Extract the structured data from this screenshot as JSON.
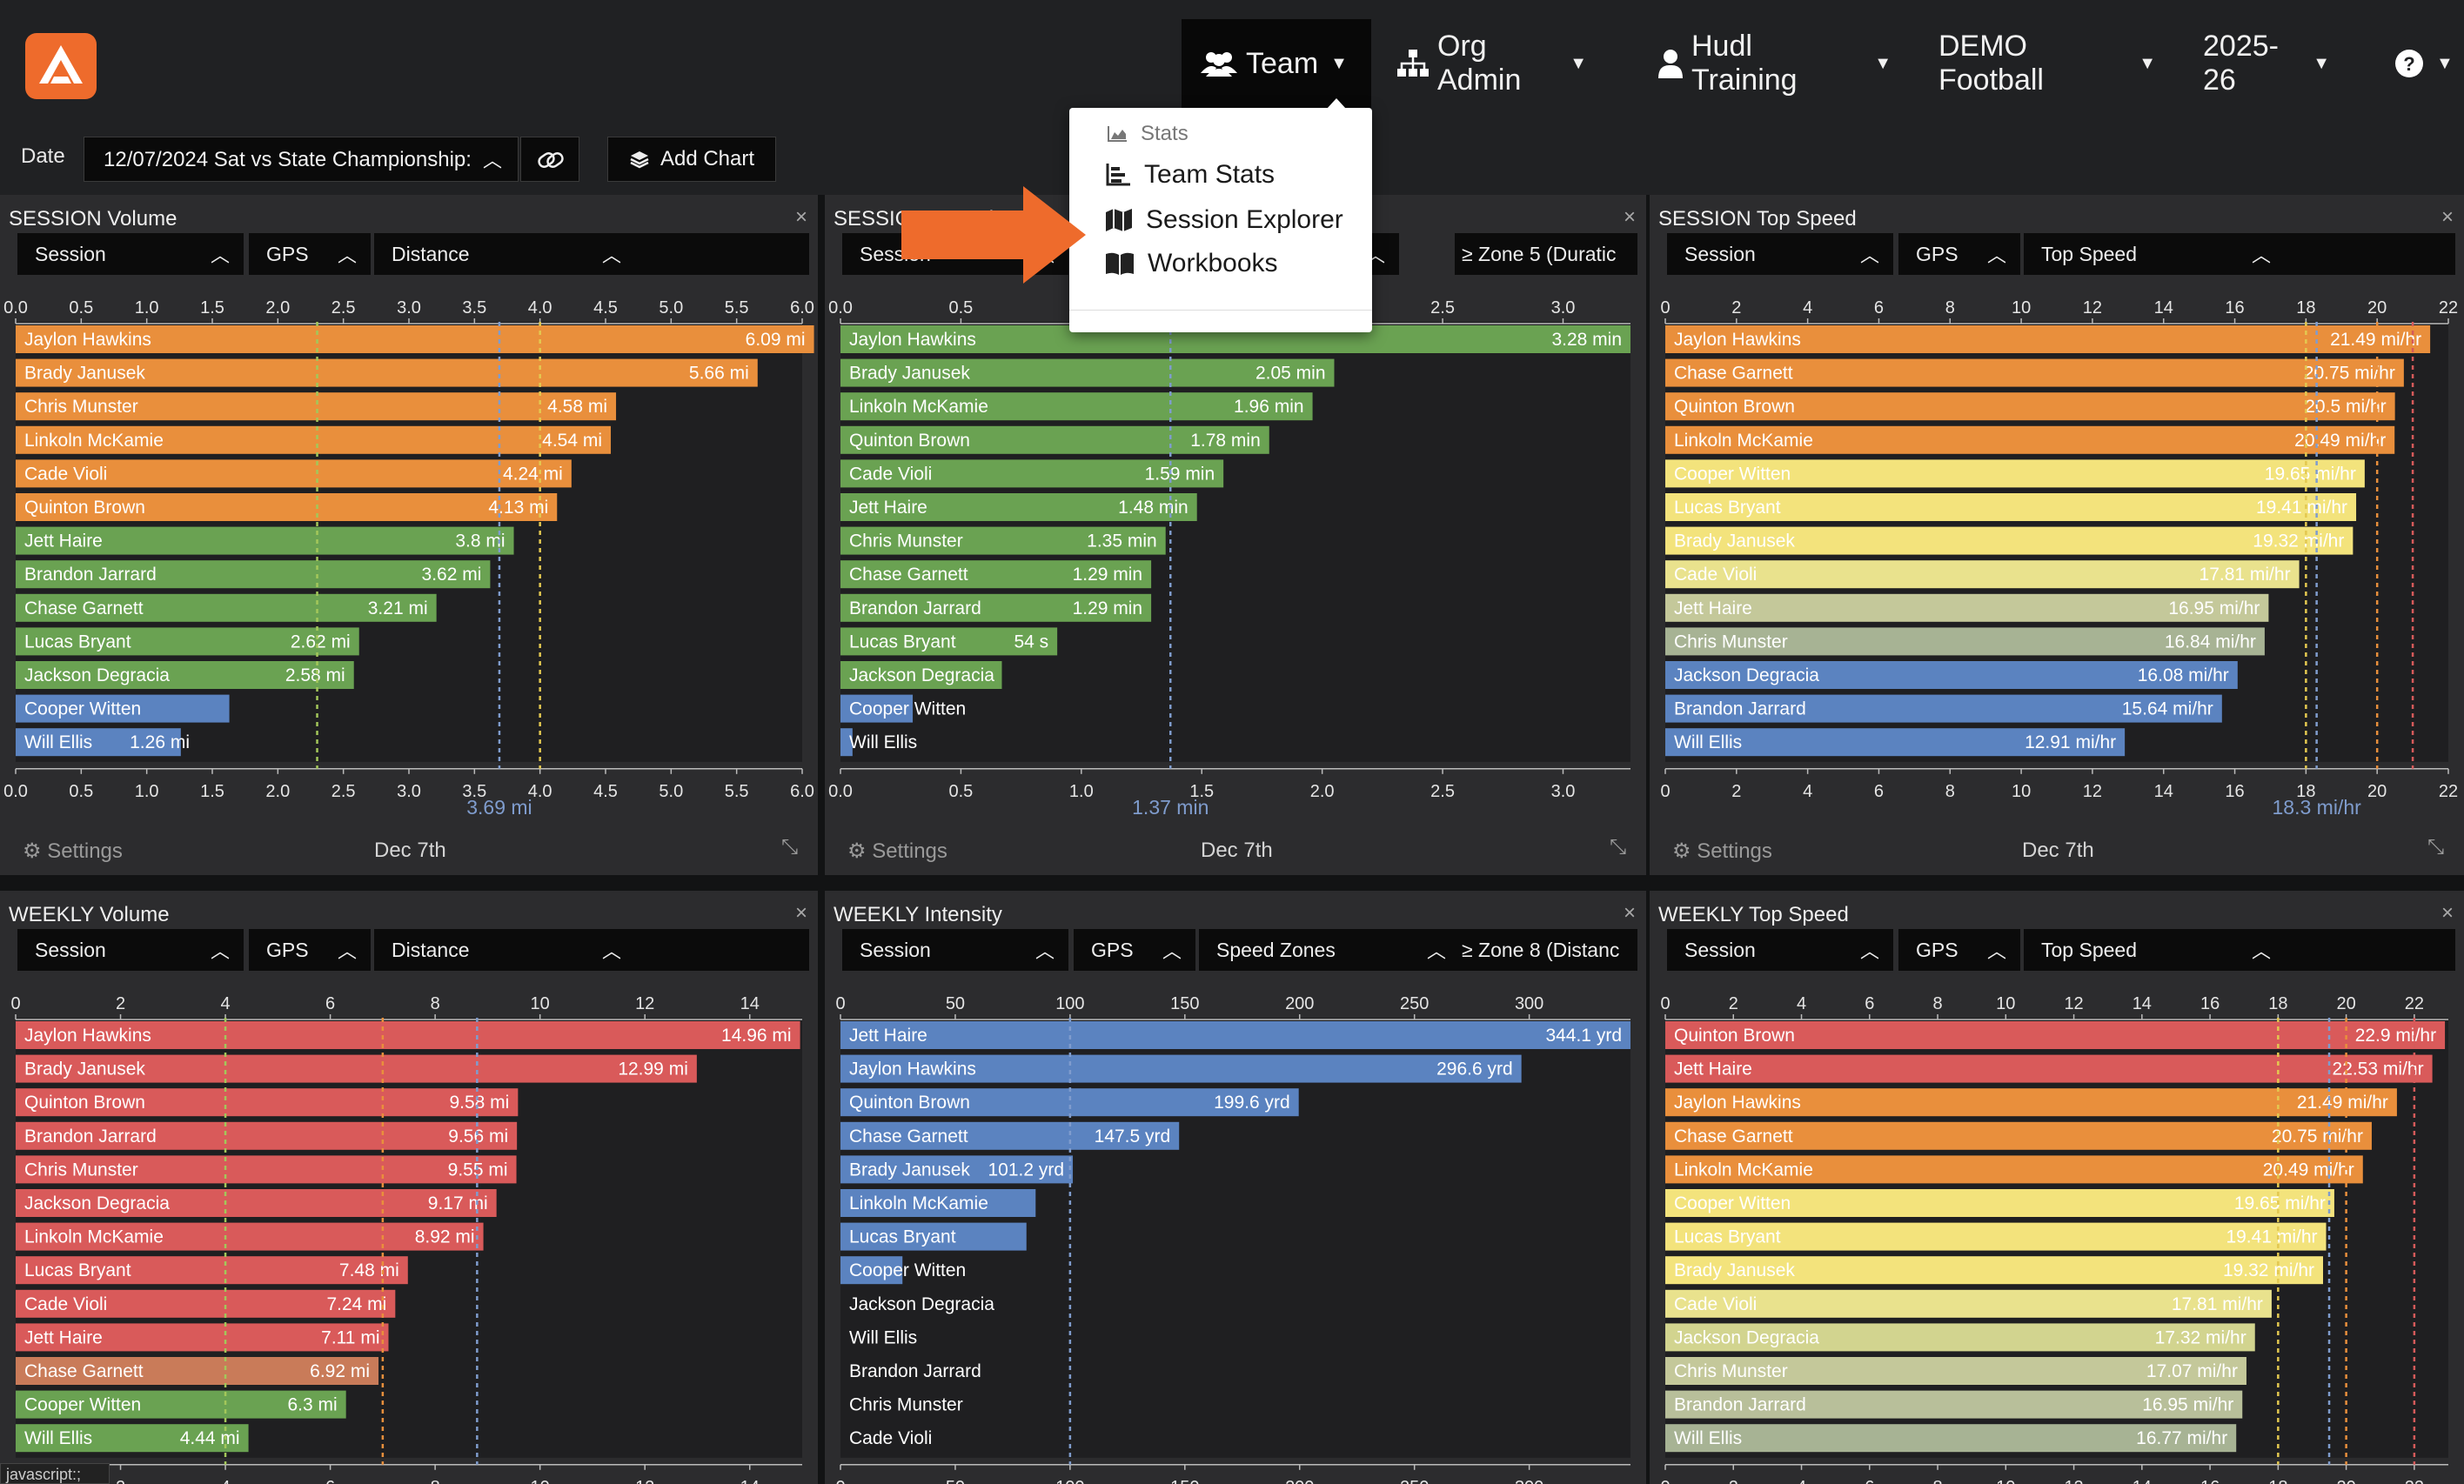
{
  "nav": {
    "logo": "hudl-logo",
    "items": [
      {
        "label": "Team",
        "icon": "users-icon",
        "active": true
      },
      {
        "label": "Org Admin",
        "icon": "org-chart-icon"
      },
      {
        "label": "Hudl Training",
        "icon": "user-icon"
      },
      {
        "label": "DEMO Football"
      },
      {
        "label": "2025-26"
      },
      {
        "label": "",
        "icon": "help-icon"
      }
    ]
  },
  "team_menu": {
    "items": [
      {
        "label": "Stats",
        "icon": "area-chart-icon",
        "muted": true
      },
      {
        "label": "Team Stats",
        "icon": "bar-chart-icon"
      },
      {
        "label": "Session Explorer",
        "icon": "map-icon"
      },
      {
        "label": "Workbooks",
        "icon": "book-icon"
      }
    ]
  },
  "toolbar": {
    "date_label": "Date",
    "date_value": "12/07/2024 Sat vs State Championship:",
    "add_chart": "Add Chart"
  },
  "status": "javascript:;",
  "panels": [
    {
      "title": "SESSION Volume",
      "selects": [
        "Session",
        "GPS",
        "Distance"
      ],
      "extra": "",
      "footer_left": "Settings",
      "footer_date": "Dec 7th",
      "avg_label": "3.69 mi",
      "avg": 3.69,
      "color": "#e98f3c",
      "chart_data": {
        "type": "bar",
        "xlim": [
          0,
          6.0
        ],
        "ticks": [
          "0.0",
          "0.5",
          "1.0",
          "1.5",
          "2.0",
          "2.5",
          "3.0",
          "3.5",
          "4.0",
          "4.5",
          "5.0",
          "5.5",
          "6.0"
        ],
        "refs": [
          {
            "value": 2.3,
            "color": "#a3c75a"
          },
          {
            "value": 3.69,
            "color": "#7f9ccd"
          },
          {
            "value": 4.0,
            "color": "#e3c850"
          }
        ],
        "rows": [
          {
            "name": "Jaylon Hawkins",
            "value": 6.09,
            "label": "6.09 mi",
            "color": "#e98f3c"
          },
          {
            "name": "Brady Janusek",
            "value": 5.66,
            "label": "5.66 mi",
            "color": "#e98f3c"
          },
          {
            "name": "Chris Munster",
            "value": 4.58,
            "label": "4.58 mi",
            "color": "#e98f3c"
          },
          {
            "name": "Linkoln McKamie",
            "value": 4.54,
            "label": "4.54 mi",
            "color": "#e98f3c"
          },
          {
            "name": "Cade Violi",
            "value": 4.24,
            "label": "4.24 mi",
            "color": "#e98f3c"
          },
          {
            "name": "Quinton Brown",
            "value": 4.13,
            "label": "4.13 mi",
            "color": "#e98f3c"
          },
          {
            "name": "Jett Haire",
            "value": 3.8,
            "label": "3.8 mi",
            "color": "#6aa252"
          },
          {
            "name": "Brandon Jarrard",
            "value": 3.62,
            "label": "3.62 mi",
            "color": "#6aa252"
          },
          {
            "name": "Chase Garnett",
            "value": 3.21,
            "label": "3.21 mi",
            "color": "#6aa252"
          },
          {
            "name": "Lucas Bryant",
            "value": 2.62,
            "label": "2.62 mi",
            "color": "#6aa252"
          },
          {
            "name": "Jackson Degracia",
            "value": 2.58,
            "label": "2.58 mi",
            "color": "#6aa252"
          },
          {
            "name": "Cooper Witten",
            "value": 1.63,
            "label": "",
            "color": "#5b83c0"
          },
          {
            "name": "Will Ellis",
            "value": 1.26,
            "label": "1.26 mi",
            "color": "#5b83c0"
          }
        ]
      }
    },
    {
      "title": "SESSION Intensity",
      "selects": [
        "Session",
        "",
        ""
      ],
      "extra": "≥ Zone 5 (Duratic",
      "footer_left": "Settings",
      "footer_date": "Dec 7th",
      "avg_label": "1.37 min",
      "avg": 1.37,
      "color": "#6aa252",
      "chart_data": {
        "type": "bar",
        "xlim": [
          0,
          3.28
        ],
        "ticks": [
          "0.0",
          "0.5",
          "1.0",
          "1.5",
          "2.0",
          "2.5",
          "3.0"
        ],
        "tick_values": [
          0,
          0.5,
          1.0,
          1.5,
          2.0,
          2.5,
          3.0
        ],
        "refs": [
          {
            "value": 1.37,
            "color": "#7f9ccd"
          }
        ],
        "rows": [
          {
            "name": "Jaylon Hawkins",
            "value": 3.28,
            "label": "3.28 min",
            "color": "#6aa252"
          },
          {
            "name": "Brady Janusek",
            "value": 2.05,
            "label": "2.05 min",
            "color": "#6aa252"
          },
          {
            "name": "Linkoln McKamie",
            "value": 1.96,
            "label": "1.96 min",
            "color": "#6aa252"
          },
          {
            "name": "Quinton Brown",
            "value": 1.78,
            "label": "1.78 min",
            "color": "#6aa252"
          },
          {
            "name": "Cade Violi",
            "value": 1.59,
            "label": "1.59 min",
            "color": "#6aa252"
          },
          {
            "name": "Jett Haire",
            "value": 1.48,
            "label": "1.48 min",
            "color": "#6aa252"
          },
          {
            "name": "Chris Munster",
            "value": 1.35,
            "label": "1.35 min",
            "color": "#6aa252"
          },
          {
            "name": "Chase Garnett",
            "value": 1.29,
            "label": "1.29 min",
            "color": "#6aa252"
          },
          {
            "name": "Brandon Jarrard",
            "value": 1.29,
            "label": "1.29 min",
            "color": "#6aa252"
          },
          {
            "name": "Lucas Bryant",
            "value": 0.9,
            "label": "54 s",
            "color": "#6aa252"
          },
          {
            "name": "Jackson Degracia",
            "value": 0.67,
            "label": "",
            "color": "#6aa252"
          },
          {
            "name": "Cooper Witten",
            "value": 0.3,
            "label": "",
            "color": "#5b83c0"
          },
          {
            "name": "Will Ellis",
            "value": 0.05,
            "label": "",
            "color": "#5b83c0"
          }
        ]
      }
    },
    {
      "title": "SESSION Top Speed",
      "selects": [
        "Session",
        "GPS",
        "Top Speed"
      ],
      "extra": "",
      "footer_left": "Settings",
      "footer_date": "Dec 7th",
      "avg_label": "18.3 mi/hr",
      "avg": 18.3,
      "color": "#e98f3c",
      "chart_data": {
        "type": "bar",
        "xlim": [
          0,
          22
        ],
        "ticks": [
          "0",
          "2",
          "4",
          "6",
          "8",
          "10",
          "12",
          "14",
          "16",
          "18",
          "20",
          "22"
        ],
        "refs": [
          {
            "value": 18.0,
            "color": "#e3c850"
          },
          {
            "value": 18.3,
            "color": "#7f9ccd"
          },
          {
            "value": 20.0,
            "color": "#e98f3c"
          },
          {
            "value": 21.0,
            "color": "#d55a5a"
          }
        ],
        "rows": [
          {
            "name": "Jaylon Hawkins",
            "value": 21.49,
            "label": "21.49 mi/hr",
            "color": "#e98f3c"
          },
          {
            "name": "Chase Garnett",
            "value": 20.75,
            "label": "20.75 mi/hr",
            "color": "#e98f3c"
          },
          {
            "name": "Quinton Brown",
            "value": 20.5,
            "label": "20.5 mi/hr",
            "color": "#e98f3c"
          },
          {
            "name": "Linkoln McKamie",
            "value": 20.49,
            "label": "20.49 mi/hr",
            "color": "#e98f3c"
          },
          {
            "name": "Cooper Witten",
            "value": 19.65,
            "label": "19.65 mi/hr",
            "color": "#f3e37c"
          },
          {
            "name": "Lucas Bryant",
            "value": 19.41,
            "label": "19.41 mi/hr",
            "color": "#f3e37c"
          },
          {
            "name": "Brady Janusek",
            "value": 19.32,
            "label": "19.32 mi/hr",
            "color": "#f3e37c"
          },
          {
            "name": "Cade Violi",
            "value": 17.81,
            "label": "17.81 mi/hr",
            "color": "#e9e28d"
          },
          {
            "name": "Jett Haire",
            "value": 16.95,
            "label": "16.95 mi/hr",
            "color": "#c4c89a"
          },
          {
            "name": "Chris Munster",
            "value": 16.84,
            "label": "16.84 mi/hr",
            "color": "#a7b394"
          },
          {
            "name": "Jackson Degracia",
            "value": 16.08,
            "label": "16.08 mi/hr",
            "color": "#5b83c0"
          },
          {
            "name": "Brandon Jarrard",
            "value": 15.64,
            "label": "15.64 mi/hr",
            "color": "#5b83c0"
          },
          {
            "name": "Will Ellis",
            "value": 12.91,
            "label": "12.91 mi/hr",
            "color": "#5b83c0"
          }
        ]
      }
    },
    {
      "title": "WEEKLY Volume",
      "selects": [
        "Session",
        "GPS",
        "Distance"
      ],
      "extra": "",
      "color": "#d95a5a",
      "chart_data": {
        "type": "bar",
        "xlim": [
          0,
          15
        ],
        "ticks": [
          "0",
          "2",
          "4",
          "6",
          "8",
          "10",
          "12",
          "14"
        ],
        "refs": [
          {
            "value": 4.0,
            "color": "#a3c75a"
          },
          {
            "value": 7.0,
            "color": "#e98f3c"
          },
          {
            "value": 8.8,
            "color": "#7f9ccd"
          }
        ],
        "rows": [
          {
            "name": "Jaylon Hawkins",
            "value": 14.96,
            "label": "14.96 mi",
            "color": "#d95a5a"
          },
          {
            "name": "Brady Janusek",
            "value": 12.99,
            "label": "12.99 mi",
            "color": "#d95a5a"
          },
          {
            "name": "Quinton Brown",
            "value": 9.58,
            "label": "9.58 mi",
            "color": "#d95a5a"
          },
          {
            "name": "Brandon Jarrard",
            "value": 9.56,
            "label": "9.56 mi",
            "color": "#d95a5a"
          },
          {
            "name": "Chris Munster",
            "value": 9.55,
            "label": "9.55 mi",
            "color": "#d95a5a"
          },
          {
            "name": "Jackson Degracia",
            "value": 9.17,
            "label": "9.17 mi",
            "color": "#d95a5a"
          },
          {
            "name": "Linkoln McKamie",
            "value": 8.92,
            "label": "8.92 mi",
            "color": "#d95a5a"
          },
          {
            "name": "Lucas Bryant",
            "value": 7.48,
            "label": "7.48 mi",
            "color": "#d95a5a"
          },
          {
            "name": "Cade Violi",
            "value": 7.24,
            "label": "7.24 mi",
            "color": "#d95a5a"
          },
          {
            "name": "Jett Haire",
            "value": 7.11,
            "label": "7.11 mi",
            "color": "#d95a5a"
          },
          {
            "name": "Chase Garnett",
            "value": 6.92,
            "label": "6.92 mi",
            "color": "#c97b59"
          },
          {
            "name": "Cooper Witten",
            "value": 6.3,
            "label": "6.3 mi",
            "color": "#6aa252"
          },
          {
            "name": "Will Ellis",
            "value": 4.44,
            "label": "4.44 mi",
            "color": "#6aa252"
          }
        ]
      }
    },
    {
      "title": "WEEKLY Intensity",
      "selects": [
        "Session",
        "GPS",
        "Speed Zones"
      ],
      "extra": "≥ Zone 8 (Distanc",
      "color": "#5b83c0",
      "chart_data": {
        "type": "bar",
        "xlim": [
          0,
          344.1
        ],
        "ticks": [
          "0",
          "50",
          "100",
          "150",
          "200",
          "250",
          "300"
        ],
        "tick_values": [
          0,
          50,
          100,
          150,
          200,
          250,
          300
        ],
        "refs": [
          {
            "value": 100,
            "color": "#7f9ccd"
          }
        ],
        "rows": [
          {
            "name": "Jett Haire",
            "value": 344.1,
            "label": "344.1 yrd",
            "color": "#5b83c0"
          },
          {
            "name": "Jaylon Hawkins",
            "value": 296.6,
            "label": "296.6 yrd",
            "color": "#5b83c0"
          },
          {
            "name": "Quinton Brown",
            "value": 199.6,
            "label": "199.6 yrd",
            "color": "#5b83c0"
          },
          {
            "name": "Chase Garnett",
            "value": 147.5,
            "label": "147.5 yrd",
            "color": "#5b83c0"
          },
          {
            "name": "Brady Janusek",
            "value": 101.2,
            "label": "101.2 yrd",
            "color": "#5b83c0"
          },
          {
            "name": "Linkoln McKamie",
            "value": 85,
            "label": "",
            "color": "#5b83c0"
          },
          {
            "name": "Lucas Bryant",
            "value": 81,
            "label": "",
            "color": "#5b83c0"
          },
          {
            "name": "Cooper Witten",
            "value": 27,
            "label": "",
            "color": "#5b83c0"
          },
          {
            "name": "Jackson Degracia",
            "value": 0,
            "label": "",
            "color": "#5b83c0"
          },
          {
            "name": "Will Ellis",
            "value": 0,
            "label": "",
            "color": "#5b83c0"
          },
          {
            "name": "Brandon Jarrard",
            "value": 0,
            "label": "",
            "color": "#5b83c0"
          },
          {
            "name": "Chris Munster",
            "value": 0,
            "label": "",
            "color": "#5b83c0"
          },
          {
            "name": "Cade Violi",
            "value": 0,
            "label": "",
            "color": "#5b83c0"
          }
        ]
      }
    },
    {
      "title": "WEEKLY Top Speed",
      "selects": [
        "Session",
        "GPS",
        "Top Speed"
      ],
      "extra": "",
      "color": "#d95a5a",
      "chart_data": {
        "type": "bar",
        "xlim": [
          0,
          23
        ],
        "ticks": [
          "0",
          "2",
          "4",
          "6",
          "8",
          "10",
          "12",
          "14",
          "16",
          "18",
          "20",
          "22"
        ],
        "refs": [
          {
            "value": 18.0,
            "color": "#e3c850"
          },
          {
            "value": 19.5,
            "color": "#7f9ccd"
          },
          {
            "value": 20.0,
            "color": "#e98f3c"
          },
          {
            "value": 22.0,
            "color": "#d55a5a"
          }
        ],
        "rows": [
          {
            "name": "Quinton Brown",
            "value": 22.9,
            "label": "22.9 mi/hr",
            "color": "#d95a5a"
          },
          {
            "name": "Jett Haire",
            "value": 22.53,
            "label": "22.53 mi/hr",
            "color": "#d95a5a"
          },
          {
            "name": "Jaylon Hawkins",
            "value": 21.49,
            "label": "21.49 mi/hr",
            "color": "#e98f3c"
          },
          {
            "name": "Chase Garnett",
            "value": 20.75,
            "label": "20.75 mi/hr",
            "color": "#e98f3c"
          },
          {
            "name": "Linkoln McKamie",
            "value": 20.49,
            "label": "20.49 mi/hr",
            "color": "#e98f3c"
          },
          {
            "name": "Cooper Witten",
            "value": 19.65,
            "label": "19.65 mi/hr",
            "color": "#f3e37c"
          },
          {
            "name": "Lucas Bryant",
            "value": 19.41,
            "label": "19.41 mi/hr",
            "color": "#f3e37c"
          },
          {
            "name": "Brady Janusek",
            "value": 19.32,
            "label": "19.32 mi/hr",
            "color": "#f3e37c"
          },
          {
            "name": "Cade Violi",
            "value": 17.81,
            "label": "17.81 mi/hr",
            "color": "#e9e28d"
          },
          {
            "name": "Jackson Degracia",
            "value": 17.32,
            "label": "17.32 mi/hr",
            "color": "#d2d48f"
          },
          {
            "name": "Chris Munster",
            "value": 17.07,
            "label": "17.07 mi/hr",
            "color": "#c4c89a"
          },
          {
            "name": "Brandon Jarrard",
            "value": 16.95,
            "label": "16.95 mi/hr",
            "color": "#b8bf9a"
          },
          {
            "name": "Will Ellis",
            "value": 16.77,
            "label": "16.77 mi/hr",
            "color": "#a7b394"
          }
        ]
      }
    }
  ]
}
